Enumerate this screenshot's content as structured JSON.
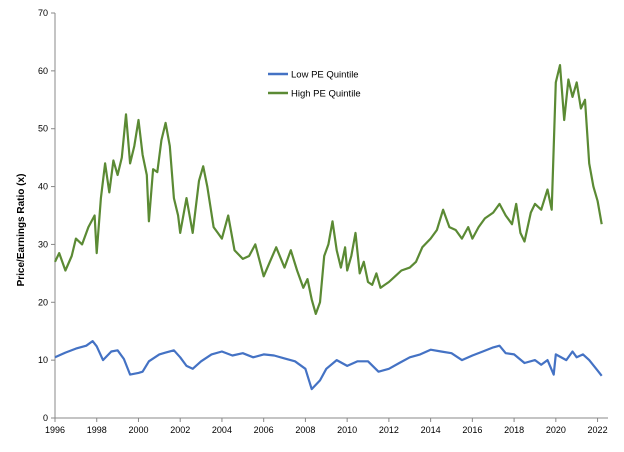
{
  "chart_data": {
    "type": "line",
    "title": "",
    "xlabel": "",
    "ylabel": "Price/Earnings Ratio (x)",
    "xlim": [
      1996,
      2022.5
    ],
    "ylim": [
      0,
      70
    ],
    "x_ticks": [
      "1996",
      "1998",
      "2000",
      "2002",
      "2004",
      "2006",
      "2008",
      "2010",
      "2012",
      "2014",
      "2016",
      "2018",
      "2020",
      "2022"
    ],
    "y_ticks": [
      "0",
      "10",
      "20",
      "30",
      "40",
      "50",
      "60",
      "70"
    ],
    "grid": false,
    "legend_position": "top-center",
    "series": [
      {
        "name": "Low PE Quintile",
        "color": "#4472C4",
        "points": [
          [
            1996.0,
            10.5
          ],
          [
            1996.5,
            11.3
          ],
          [
            1997.0,
            12.0
          ],
          [
            1997.5,
            12.5
          ],
          [
            1997.8,
            13.3
          ],
          [
            1998.0,
            12.4
          ],
          [
            1998.3,
            10.0
          ],
          [
            1998.7,
            11.5
          ],
          [
            1999.0,
            11.7
          ],
          [
            1999.3,
            10.2
          ],
          [
            1999.6,
            7.5
          ],
          [
            2000.0,
            7.8
          ],
          [
            2000.2,
            8.0
          ],
          [
            2000.5,
            9.8
          ],
          [
            2001.0,
            11.0
          ],
          [
            2001.3,
            11.3
          ],
          [
            2001.7,
            11.7
          ],
          [
            2002.0,
            10.5
          ],
          [
            2002.3,
            9.0
          ],
          [
            2002.6,
            8.5
          ],
          [
            2003.0,
            9.8
          ],
          [
            2003.5,
            11.0
          ],
          [
            2004.0,
            11.5
          ],
          [
            2004.5,
            10.8
          ],
          [
            2005.0,
            11.2
          ],
          [
            2005.5,
            10.5
          ],
          [
            2006.0,
            11.0
          ],
          [
            2006.5,
            10.8
          ],
          [
            2007.0,
            10.3
          ],
          [
            2007.5,
            9.8
          ],
          [
            2008.0,
            8.5
          ],
          [
            2008.3,
            5.0
          ],
          [
            2008.7,
            6.5
          ],
          [
            2009.0,
            8.5
          ],
          [
            2009.5,
            10.0
          ],
          [
            2010.0,
            9.0
          ],
          [
            2010.5,
            9.8
          ],
          [
            2011.0,
            9.8
          ],
          [
            2011.5,
            8.0
          ],
          [
            2012.0,
            8.5
          ],
          [
            2012.5,
            9.5
          ],
          [
            2013.0,
            10.5
          ],
          [
            2013.5,
            11.0
          ],
          [
            2014.0,
            11.8
          ],
          [
            2014.5,
            11.5
          ],
          [
            2015.0,
            11.2
          ],
          [
            2015.5,
            10.0
          ],
          [
            2016.0,
            10.8
          ],
          [
            2016.5,
            11.5
          ],
          [
            2017.0,
            12.2
          ],
          [
            2017.3,
            12.5
          ],
          [
            2017.6,
            11.2
          ],
          [
            2018.0,
            11.0
          ],
          [
            2018.5,
            9.5
          ],
          [
            2019.0,
            10.0
          ],
          [
            2019.3,
            9.2
          ],
          [
            2019.6,
            10.0
          ],
          [
            2019.9,
            7.5
          ],
          [
            2020.0,
            11.0
          ],
          [
            2020.5,
            10.0
          ],
          [
            2020.8,
            11.5
          ],
          [
            2021.0,
            10.5
          ],
          [
            2021.3,
            11.0
          ],
          [
            2021.6,
            10.0
          ],
          [
            2022.0,
            8.2
          ],
          [
            2022.2,
            7.3
          ]
        ]
      },
      {
        "name": "High PE Quintile",
        "color": "#5B8A34",
        "points": [
          [
            1996.0,
            27.0
          ],
          [
            1996.2,
            28.5
          ],
          [
            1996.5,
            25.5
          ],
          [
            1996.8,
            28.0
          ],
          [
            1997.0,
            31.0
          ],
          [
            1997.3,
            30.0
          ],
          [
            1997.6,
            33.0
          ],
          [
            1997.9,
            35.0
          ],
          [
            1998.0,
            28.5
          ],
          [
            1998.2,
            38.0
          ],
          [
            1998.4,
            44.0
          ],
          [
            1998.6,
            39.0
          ],
          [
            1998.8,
            44.5
          ],
          [
            1999.0,
            42.0
          ],
          [
            1999.2,
            45.0
          ],
          [
            1999.4,
            52.5
          ],
          [
            1999.6,
            44.0
          ],
          [
            1999.8,
            47.0
          ],
          [
            2000.0,
            51.5
          ],
          [
            2000.2,
            45.5
          ],
          [
            2000.4,
            42.0
          ],
          [
            2000.5,
            34.0
          ],
          [
            2000.7,
            43.0
          ],
          [
            2000.9,
            42.5
          ],
          [
            2001.1,
            48.0
          ],
          [
            2001.3,
            51.0
          ],
          [
            2001.5,
            47.0
          ],
          [
            2001.7,
            38.0
          ],
          [
            2001.9,
            35.0
          ],
          [
            2002.0,
            32.0
          ],
          [
            2002.3,
            38.0
          ],
          [
            2002.6,
            32.0
          ],
          [
            2002.9,
            41.0
          ],
          [
            2003.1,
            43.5
          ],
          [
            2003.3,
            40.0
          ],
          [
            2003.6,
            33.0
          ],
          [
            2003.8,
            32.0
          ],
          [
            2004.0,
            31.0
          ],
          [
            2004.3,
            35.0
          ],
          [
            2004.6,
            29.0
          ],
          [
            2005.0,
            27.5
          ],
          [
            2005.3,
            28.0
          ],
          [
            2005.6,
            30.0
          ],
          [
            2006.0,
            24.5
          ],
          [
            2006.3,
            27.0
          ],
          [
            2006.6,
            29.5
          ],
          [
            2007.0,
            26.0
          ],
          [
            2007.3,
            29.0
          ],
          [
            2007.6,
            25.5
          ],
          [
            2007.9,
            22.5
          ],
          [
            2008.1,
            24.0
          ],
          [
            2008.3,
            20.5
          ],
          [
            2008.5,
            18.0
          ],
          [
            2008.7,
            20.0
          ],
          [
            2008.9,
            28.0
          ],
          [
            2009.1,
            30.0
          ],
          [
            2009.3,
            34.0
          ],
          [
            2009.5,
            29.0
          ],
          [
            2009.7,
            26.0
          ],
          [
            2009.9,
            29.5
          ],
          [
            2010.0,
            25.5
          ],
          [
            2010.2,
            28.0
          ],
          [
            2010.4,
            32.0
          ],
          [
            2010.6,
            25.0
          ],
          [
            2010.8,
            27.0
          ],
          [
            2011.0,
            23.5
          ],
          [
            2011.2,
            23.0
          ],
          [
            2011.4,
            25.0
          ],
          [
            2011.6,
            22.5
          ],
          [
            2011.8,
            23.0
          ],
          [
            2012.0,
            23.5
          ],
          [
            2012.3,
            24.5
          ],
          [
            2012.6,
            25.5
          ],
          [
            2013.0,
            26.0
          ],
          [
            2013.3,
            27.0
          ],
          [
            2013.6,
            29.5
          ],
          [
            2014.0,
            31.0
          ],
          [
            2014.3,
            32.5
          ],
          [
            2014.6,
            36.0
          ],
          [
            2014.9,
            33.0
          ],
          [
            2015.2,
            32.5
          ],
          [
            2015.5,
            31.0
          ],
          [
            2015.8,
            33.0
          ],
          [
            2016.0,
            31.0
          ],
          [
            2016.3,
            33.0
          ],
          [
            2016.6,
            34.5
          ],
          [
            2017.0,
            35.5
          ],
          [
            2017.3,
            37.0
          ],
          [
            2017.6,
            35.0
          ],
          [
            2017.9,
            33.5
          ],
          [
            2018.1,
            37.0
          ],
          [
            2018.3,
            32.0
          ],
          [
            2018.5,
            30.5
          ],
          [
            2018.8,
            35.5
          ],
          [
            2019.0,
            37.0
          ],
          [
            2019.3,
            36.0
          ],
          [
            2019.6,
            39.5
          ],
          [
            2019.8,
            36.0
          ],
          [
            2020.0,
            58.0
          ],
          [
            2020.2,
            61.0
          ],
          [
            2020.4,
            51.5
          ],
          [
            2020.6,
            58.5
          ],
          [
            2020.8,
            55.5
          ],
          [
            2021.0,
            58.0
          ],
          [
            2021.2,
            53.5
          ],
          [
            2021.4,
            55.0
          ],
          [
            2021.6,
            44.0
          ],
          [
            2021.8,
            40.0
          ],
          [
            2022.0,
            37.5
          ],
          [
            2022.2,
            33.5
          ]
        ]
      }
    ]
  }
}
